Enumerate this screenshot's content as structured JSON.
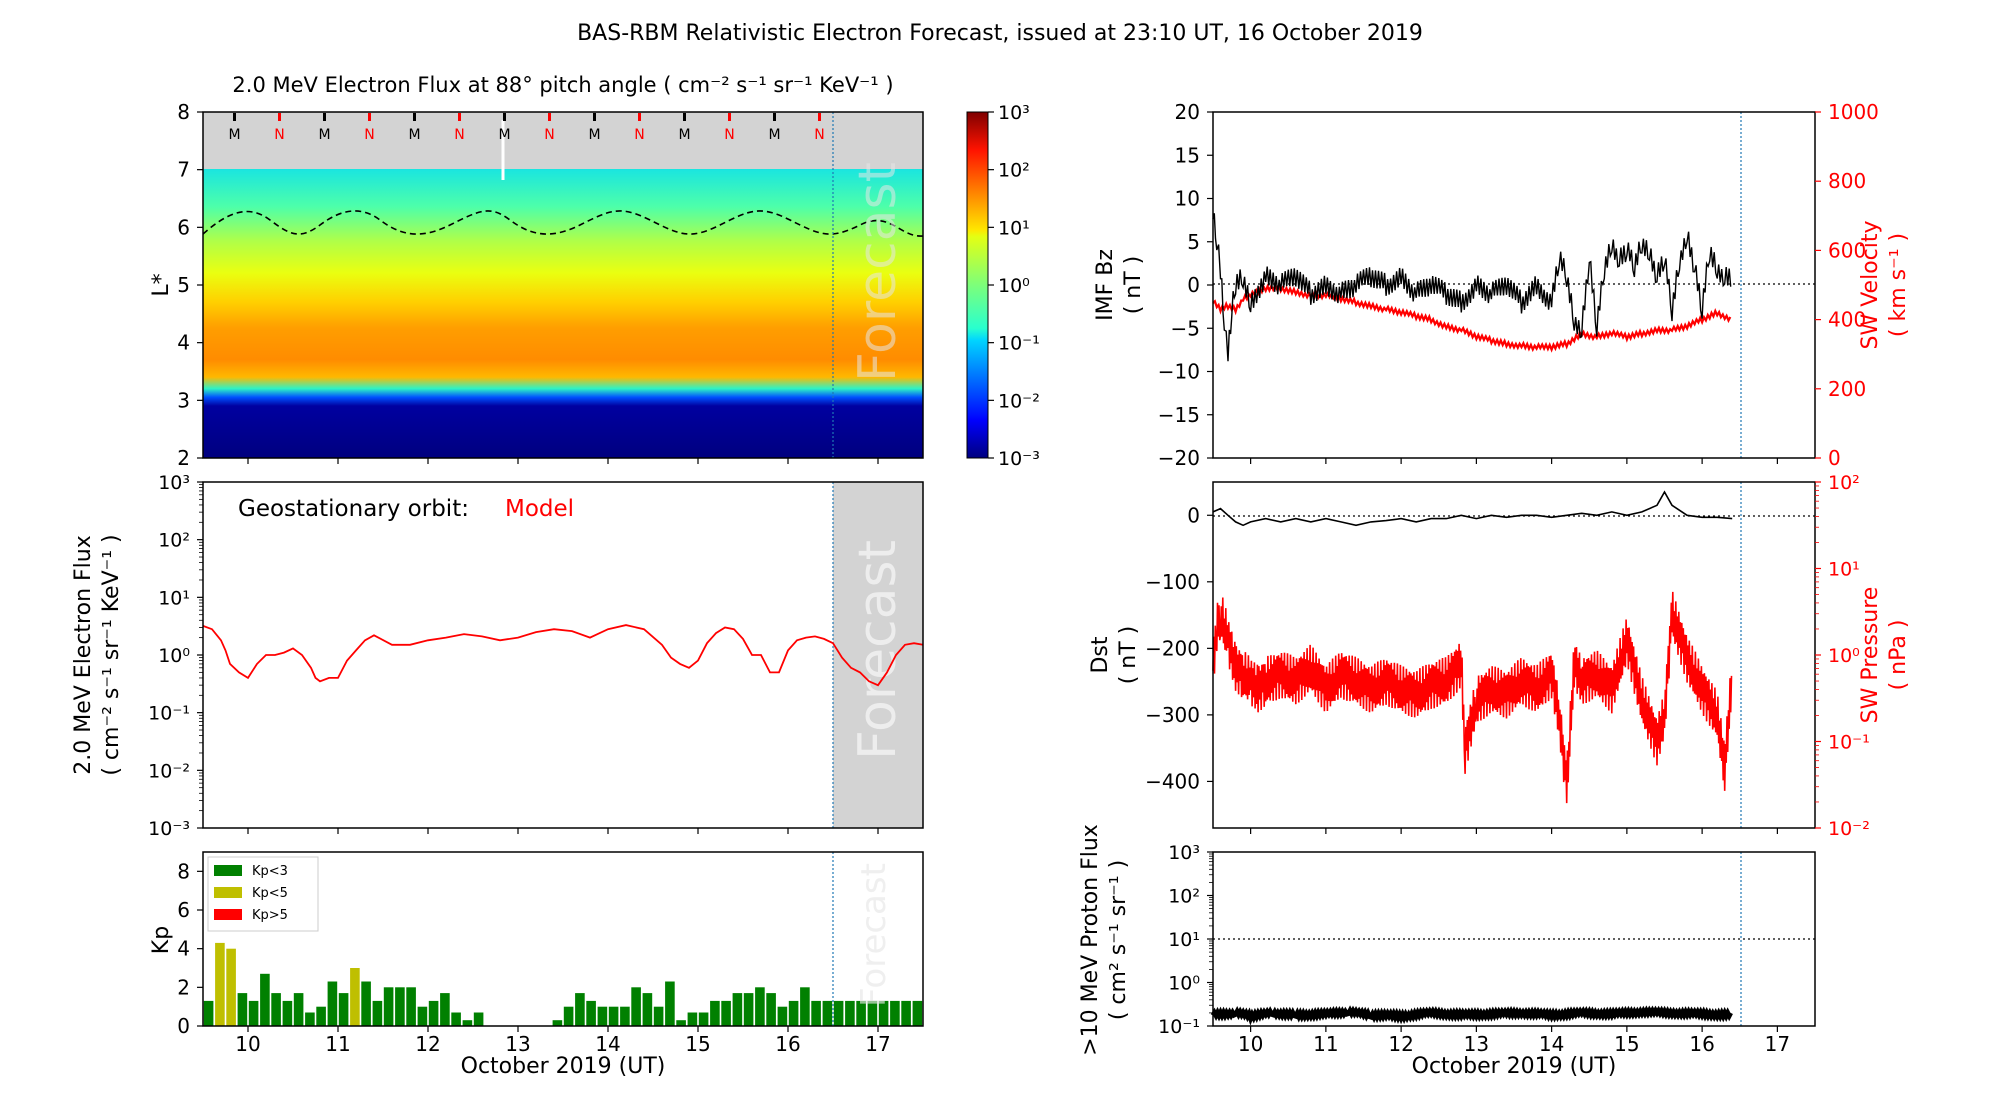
{
  "figure": {
    "title": "BAS-RBM Relativistic Electron Forecast, issued at 23:10 UT, 16 October 2019"
  },
  "colors": {
    "model": "#ff0000",
    "imf": "#000000",
    "sw": "#ff0000",
    "kp_low": "#008000",
    "kp_mid": "#bfbf00",
    "kp_high": "#ff0000",
    "forecast_line": "#1f77b4",
    "forecast_shade": "#d3d3d3"
  },
  "chart_data": [
    {
      "id": "flux-map",
      "type": "heatmap",
      "title": "2.0 MeV Electron Flux at 88° pitch angle ( cm⁻² s⁻¹ sr⁻¹ KeV⁻¹ )",
      "ylabel": "L*",
      "xlim": [
        9.5,
        17.5
      ],
      "ylim": [
        2,
        8
      ],
      "yticks": [
        2,
        3,
        4,
        5,
        6,
        7,
        8
      ],
      "xticks": [
        10,
        11,
        12,
        13,
        14,
        15,
        16,
        17
      ],
      "colorbar": {
        "scale": "log",
        "range": [
          0.001,
          1000
        ],
        "ticks": [
          "10⁻³",
          "10⁻²",
          "10⁻¹",
          "10⁰",
          "10¹",
          "10²",
          "10³"
        ]
      },
      "mn_markers": [
        "M",
        "N",
        "M",
        "N",
        "M",
        "N",
        "M",
        "N",
        "M",
        "N",
        "M",
        "N",
        "M",
        "N"
      ],
      "mn_x": [
        9.85,
        10.35,
        10.85,
        11.35,
        11.85,
        12.35,
        12.85,
        13.35,
        13.85,
        14.35,
        14.85,
        15.35,
        15.85,
        16.35
      ],
      "profile": [
        {
          "L": 2.0,
          "log_flux": -3.0
        },
        {
          "L": 3.0,
          "log_flux": -2.9
        },
        {
          "L": 3.2,
          "log_flux": -1.2
        },
        {
          "L": 3.5,
          "log_flux": 1.5
        },
        {
          "L": 4.0,
          "log_flux": 1.8
        },
        {
          "L": 4.5,
          "log_flux": 1.7
        },
        {
          "L": 5.0,
          "log_flux": 1.2
        },
        {
          "L": 5.5,
          "log_flux": 0.6
        },
        {
          "L": 6.0,
          "log_flux": 0.0
        },
        {
          "L": 6.5,
          "log_flux": -0.6
        },
        {
          "L": 7.0,
          "log_flux": -1.1
        }
      ],
      "forecast_x": 16.46,
      "forecast_label": "Forecast"
    },
    {
      "id": "geo-flux",
      "type": "line",
      "ylabel": "2.0 MeV Electron Flux\n( cm⁻² s⁻¹ sr⁻¹ KeV⁻¹ )",
      "annotation": "Geostationary orbit:",
      "annotation_series": "Model",
      "yscale": "log",
      "ylim": [
        0.001,
        1000
      ],
      "yticks": [
        "10⁻³",
        "10⁻²",
        "10⁻¹",
        "10⁰",
        "10¹",
        "10²",
        "10³"
      ],
      "xlim": [
        9.5,
        17.5
      ],
      "x": [
        9.5,
        9.6,
        9.7,
        9.75,
        9.8,
        9.9,
        10.0,
        10.1,
        10.2,
        10.3,
        10.4,
        10.5,
        10.6,
        10.7,
        10.75,
        10.8,
        10.9,
        11.0,
        11.1,
        11.2,
        11.3,
        11.4,
        11.6,
        11.8,
        12.0,
        12.2,
        12.4,
        12.6,
        12.8,
        13.0,
        13.2,
        13.4,
        13.6,
        13.8,
        14.0,
        14.2,
        14.4,
        14.6,
        14.7,
        14.8,
        14.9,
        15.0,
        15.1,
        15.2,
        15.3,
        15.4,
        15.5,
        15.6,
        15.7,
        15.8,
        15.9,
        16.0,
        16.1,
        16.2,
        16.3,
        16.4,
        16.5,
        16.6,
        16.7,
        16.8,
        16.9,
        17.0,
        17.1,
        17.2,
        17.3,
        17.4,
        17.5
      ],
      "y": [
        3.2,
        2.8,
        1.8,
        1.2,
        0.7,
        0.5,
        0.4,
        0.7,
        1.0,
        1.0,
        1.1,
        1.3,
        1.0,
        0.6,
        0.4,
        0.35,
        0.4,
        0.4,
        0.8,
        1.2,
        1.8,
        2.2,
        1.5,
        1.5,
        1.8,
        2.0,
        2.3,
        2.1,
        1.8,
        2.0,
        2.5,
        2.8,
        2.6,
        2.0,
        2.8,
        3.3,
        2.8,
        1.5,
        0.9,
        0.7,
        0.6,
        0.8,
        1.6,
        2.4,
        3.0,
        2.8,
        1.9,
        1.0,
        1.0,
        0.5,
        0.5,
        1.2,
        1.8,
        2.0,
        2.1,
        1.9,
        1.6,
        0.9,
        0.6,
        0.5,
        0.35,
        0.3,
        0.5,
        1.0,
        1.5,
        1.6,
        1.5
      ],
      "forecast_x": 16.46,
      "forecast_label": "Forecast"
    },
    {
      "id": "kp",
      "type": "bar",
      "ylabel": "Kp",
      "xlabel": "October 2019 (UT)",
      "ylim": [
        0,
        9
      ],
      "yticks": [
        0,
        2,
        4,
        6,
        8
      ],
      "xlim": [
        9.5,
        17.5
      ],
      "xticks": [
        10,
        11,
        12,
        13,
        14,
        15,
        16,
        17
      ],
      "legend": [
        "Kp<3",
        "Kp<5",
        "Kp>5"
      ],
      "bar_x": [
        9.5625,
        9.6875,
        9.8125,
        9.9375,
        10.0625,
        10.1875,
        10.3125,
        10.4375,
        10.5625,
        10.6875,
        10.8125,
        10.9375,
        11.0625,
        11.1875,
        11.3125,
        11.4375,
        11.5625,
        11.6875,
        11.8125,
        11.9375,
        12.0625,
        12.1875,
        12.3125,
        12.4375,
        12.5625,
        13.4375,
        13.5625,
        13.6875,
        13.8125,
        13.9375,
        14.0625,
        14.1875,
        14.3125,
        14.4375,
        14.5625,
        14.6875,
        14.8125,
        14.9375,
        15.0625,
        15.1875,
        15.3125,
        15.4375,
        15.5625,
        15.6875,
        15.8125,
        15.9375,
        16.0625,
        16.1875,
        16.3125,
        16.4375,
        16.5625,
        16.6875,
        16.8125,
        16.9375,
        17.0625,
        17.1875,
        17.3125,
        17.4375
      ],
      "bar_kp": [
        1.3,
        4.3,
        4.0,
        1.7,
        1.3,
        2.7,
        1.7,
        1.3,
        1.7,
        0.7,
        1.0,
        2.3,
        1.7,
        3.0,
        2.3,
        1.3,
        2.0,
        2.0,
        2.0,
        1.0,
        1.3,
        1.7,
        0.7,
        0.3,
        0.7,
        0.3,
        1.0,
        1.7,
        1.3,
        1.0,
        1.0,
        1.0,
        2.0,
        1.7,
        1.0,
        2.3,
        0.3,
        0.7,
        0.7,
        1.3,
        1.3,
        1.7,
        1.7,
        2.0,
        1.7,
        1.0,
        1.3,
        2.0,
        1.3,
        1.3,
        1.3,
        1.3,
        1.3,
        1.3,
        1.3,
        1.3,
        1.3,
        1.3
      ],
      "forecast_x": 16.46,
      "forecast_label": "Forecast"
    },
    {
      "id": "imf-sw",
      "type": "line",
      "ylabel": "IMF Bz\n( nT )",
      "ylabel_right": "SW Velocity\n( km s⁻¹ )",
      "ylim": [
        -20,
        20
      ],
      "yticks": [
        20,
        15,
        10,
        5,
        0,
        -5,
        -10,
        -15,
        -20
      ],
      "ylim_right": [
        0,
        1000
      ],
      "yticks_right": [
        1000,
        800,
        600,
        400,
        200,
        0
      ],
      "xlim": [
        9.5,
        17.5
      ],
      "series": [
        {
          "name": "IMF Bz",
          "x": [
            9.5,
            9.55,
            9.6,
            9.65,
            9.7,
            9.75,
            9.8,
            9.9,
            10.0,
            10.2,
            10.4,
            10.6,
            10.8,
            11.0,
            11.2,
            11.4,
            11.6,
            11.8,
            12.0,
            12.2,
            12.4,
            12.6,
            12.8,
            13.0,
            13.2,
            13.4,
            13.6,
            13.8,
            14.0,
            14.1,
            14.2,
            14.3,
            14.4,
            14.5,
            14.6,
            14.7,
            14.8,
            14.9,
            15.0,
            15.1,
            15.2,
            15.3,
            15.4,
            15.5,
            15.6,
            15.7,
            15.8,
            15.9,
            16.0,
            16.1,
            16.2,
            16.3,
            16.4
          ],
          "y": [
            8,
            5,
            2,
            -4,
            -8,
            -3,
            0,
            1,
            -2,
            1,
            0,
            1,
            -1,
            0,
            -1,
            0,
            1,
            0,
            1,
            -1,
            0,
            -1,
            -2,
            0,
            -1,
            0,
            -2,
            0,
            -2,
            3,
            1,
            -4,
            -5,
            3,
            -5,
            2,
            5,
            3,
            4,
            2,
            5,
            4,
            1,
            3,
            -3,
            3,
            6,
            2,
            -3,
            4,
            2,
            1,
            1
          ]
        },
        {
          "name": "SW Velocity",
          "x": [
            9.5,
            9.6,
            9.7,
            9.8,
            9.9,
            10.0,
            10.2,
            10.4,
            10.6,
            10.8,
            11.0,
            11.2,
            11.4,
            11.6,
            11.8,
            12.0,
            12.2,
            12.4,
            12.6,
            12.8,
            13.0,
            13.2,
            13.4,
            13.6,
            13.8,
            14.0,
            14.2,
            14.4,
            14.6,
            14.8,
            15.0,
            15.2,
            15.4,
            15.6,
            15.8,
            16.0,
            16.2,
            16.4
          ],
          "y": [
            450,
            430,
            440,
            430,
            460,
            470,
            490,
            490,
            480,
            470,
            470,
            460,
            450,
            440,
            430,
            420,
            410,
            400,
            380,
            370,
            350,
            340,
            330,
            325,
            320,
            320,
            330,
            360,
            350,
            360,
            350,
            360,
            370,
            370,
            380,
            400,
            420,
            400
          ]
        }
      ],
      "forecast_x": 16.46
    },
    {
      "id": "dst-pressure",
      "type": "line",
      "ylabel": "Dst\n( nT )",
      "ylabel_right": "SW Pressure\n( nPa )",
      "ylim": [
        -470,
        50
      ],
      "yticks": [
        0,
        -100,
        -200,
        -300,
        -400
      ],
      "ylim_right": [
        0.01,
        100
      ],
      "yticks_right": [
        "10⁻²",
        "10⁻¹",
        "10⁰",
        "10¹",
        "10²"
      ],
      "xlim": [
        9.5,
        17.5
      ],
      "series": [
        {
          "name": "Dst",
          "x": [
            9.5,
            9.6,
            9.7,
            9.8,
            9.9,
            10.0,
            10.2,
            10.4,
            10.6,
            10.8,
            11.0,
            11.2,
            11.4,
            11.6,
            11.8,
            12.0,
            12.2,
            12.4,
            12.6,
            12.8,
            13.0,
            13.2,
            13.4,
            13.6,
            13.8,
            14.0,
            14.2,
            14.4,
            14.6,
            14.8,
            15.0,
            15.2,
            15.4,
            15.5,
            15.6,
            15.8,
            16.0,
            16.2,
            16.4
          ],
          "y": [
            5,
            10,
            0,
            -10,
            -15,
            -10,
            -5,
            -10,
            -5,
            -10,
            -5,
            -10,
            -15,
            -10,
            -8,
            -5,
            -10,
            -5,
            -5,
            0,
            -5,
            0,
            -3,
            0,
            0,
            -3,
            0,
            3,
            0,
            5,
            0,
            5,
            15,
            35,
            15,
            0,
            -3,
            -3,
            -5
          ]
        },
        {
          "name": "SW Pressure",
          "x": [
            9.5,
            9.55,
            9.6,
            9.7,
            9.8,
            9.9,
            10.0,
            10.1,
            10.2,
            10.4,
            10.6,
            10.8,
            11.0,
            11.2,
            11.4,
            11.6,
            11.8,
            12.0,
            12.2,
            12.4,
            12.6,
            12.8,
            12.85,
            13.0,
            13.2,
            13.4,
            13.6,
            13.8,
            14.0,
            14.1,
            14.2,
            14.3,
            14.4,
            14.6,
            14.8,
            15.0,
            15.2,
            15.4,
            15.5,
            15.6,
            15.8,
            16.0,
            16.2,
            16.3,
            16.4
          ],
          "y": [
            0.8,
            2.0,
            3.0,
            1.5,
            0.7,
            0.6,
            0.5,
            0.4,
            0.5,
            0.6,
            0.5,
            0.7,
            0.4,
            0.6,
            0.5,
            0.4,
            0.5,
            0.4,
            0.35,
            0.45,
            0.5,
            0.8,
            0.08,
            0.3,
            0.4,
            0.35,
            0.5,
            0.4,
            0.6,
            0.2,
            0.03,
            0.8,
            0.5,
            0.6,
            0.4,
            1.5,
            0.3,
            0.1,
            0.2,
            3.0,
            0.9,
            0.4,
            0.2,
            0.05,
            0.6
          ]
        }
      ],
      "forecast_x": 16.46
    },
    {
      "id": "proton",
      "type": "line",
      "ylabel": ">10 MeV Proton Flux\n( cm² s⁻¹ sr⁻¹ )",
      "xlabel": "October 2019 (UT)",
      "yscale": "log",
      "ylim": [
        0.1,
        1000
      ],
      "yticks": [
        "10⁻¹",
        "10⁰",
        "10¹",
        "10²",
        "10³"
      ],
      "threshold": 10,
      "xlim": [
        9.5,
        17.5
      ],
      "xticks": [
        10,
        11,
        12,
        13,
        14,
        15,
        16,
        17
      ],
      "series": [
        {
          "name": "Proton",
          "x": [
            9.5,
            9.8,
            10.0,
            10.3,
            10.6,
            11.0,
            11.3,
            11.6,
            12.0,
            12.4,
            12.8,
            13.2,
            13.6,
            14.0,
            14.4,
            14.8,
            15.2,
            15.6,
            16.0,
            16.4
          ],
          "y": [
            0.18,
            0.2,
            0.17,
            0.2,
            0.18,
            0.19,
            0.21,
            0.18,
            0.17,
            0.2,
            0.18,
            0.19,
            0.2,
            0.18,
            0.2,
            0.19,
            0.21,
            0.2,
            0.19,
            0.18
          ]
        }
      ],
      "forecast_x": 16.46
    }
  ]
}
